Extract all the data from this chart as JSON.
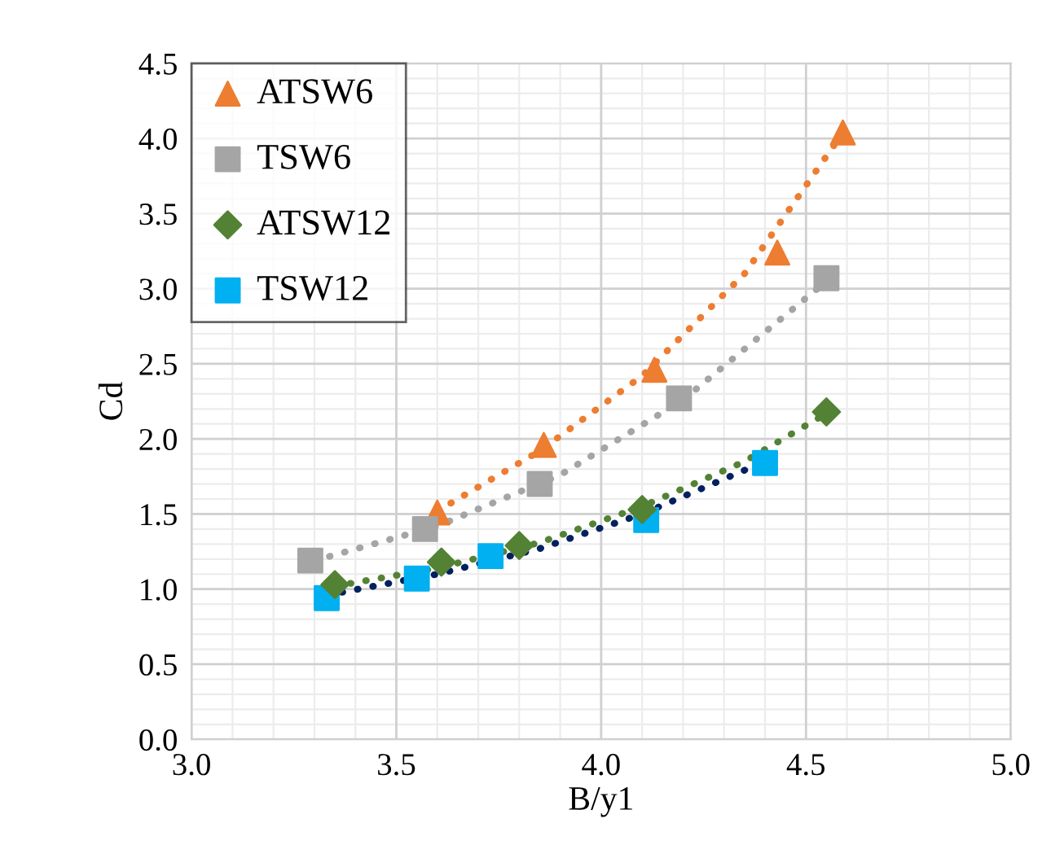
{
  "chart_data": {
    "type": "scatter",
    "xlabel": "B/y1",
    "ylabel": "Cd",
    "xlim": [
      3.0,
      5.0
    ],
    "xticks": [
      {
        "value": 3.0,
        "label": "3.0"
      },
      {
        "value": 3.5,
        "label": "3.5"
      },
      {
        "value": 4.0,
        "label": "4.0"
      },
      {
        "value": 4.5,
        "label": "4.5"
      },
      {
        "value": 5.0,
        "label": "5.0"
      }
    ],
    "ylim": [
      0.0,
      4.5
    ],
    "yticks": [
      {
        "value": 0.0,
        "label": "0.0"
      },
      {
        "value": 0.5,
        "label": "0.5"
      },
      {
        "value": 1.0,
        "label": "1.0"
      },
      {
        "value": 1.5,
        "label": "1.5"
      },
      {
        "value": 2.0,
        "label": "2.0"
      },
      {
        "value": 2.5,
        "label": "2.5"
      },
      {
        "value": 3.0,
        "label": "3.0"
      },
      {
        "value": 3.5,
        "label": "3.5"
      },
      {
        "value": 4.0,
        "label": "4.0"
      },
      {
        "value": 4.5,
        "label": "4.5"
      }
    ],
    "grid": true,
    "legend": "top left",
    "series": [
      {
        "name": "ATSW6",
        "color": "#ed7d31",
        "marker": "triangle",
        "x": [
          3.6,
          3.86,
          4.13,
          4.43,
          4.59
        ],
        "values": [
          1.51,
          1.96,
          2.46,
          3.24,
          4.04
        ]
      },
      {
        "name": "TSW6",
        "color": "#a5a5a5",
        "marker": "square",
        "x": [
          3.29,
          3.57,
          3.85,
          4.19,
          4.55
        ],
        "values": [
          1.19,
          1.4,
          1.7,
          2.27,
          3.07
        ]
      },
      {
        "name": "ATSW12",
        "color": "#548235",
        "marker": "diamond",
        "x": [
          3.35,
          3.61,
          3.8,
          4.1,
          4.55
        ],
        "values": [
          1.03,
          1.18,
          1.29,
          1.53,
          2.18
        ]
      },
      {
        "name": "TSW12",
        "color": "#00b0f0",
        "marker": "square",
        "x": [
          3.33,
          3.55,
          3.73,
          4.11,
          4.4
        ],
        "values": [
          0.94,
          1.07,
          1.22,
          1.46,
          1.84
        ]
      },
      {
        "type": "line",
        "color": "#ed7d31",
        "line_style": "dotted",
        "x": [
          3.6,
          3.85,
          4.1,
          4.35,
          4.58
        ],
        "values": [
          1.52,
          1.92,
          2.42,
          3.1,
          4.0
        ]
      },
      {
        "type": "line",
        "color": "#a5a5a5",
        "line_style": "dotted",
        "x": [
          3.3,
          3.6,
          3.9,
          4.2,
          4.55
        ],
        "values": [
          1.19,
          1.42,
          1.76,
          2.26,
          3.05
        ]
      },
      {
        "type": "line",
        "color": "#548235",
        "line_style": "dotted",
        "x": [
          3.35,
          3.6,
          3.85,
          4.1,
          4.35,
          4.55
        ],
        "values": [
          1.02,
          1.14,
          1.31,
          1.55,
          1.85,
          2.17
        ]
      },
      {
        "type": "line",
        "color": "#002060",
        "line_style": "dotted",
        "x": [
          3.33,
          3.6,
          3.85,
          4.1,
          4.4
        ],
        "values": [
          0.96,
          1.1,
          1.27,
          1.5,
          1.85
        ]
      }
    ]
  }
}
